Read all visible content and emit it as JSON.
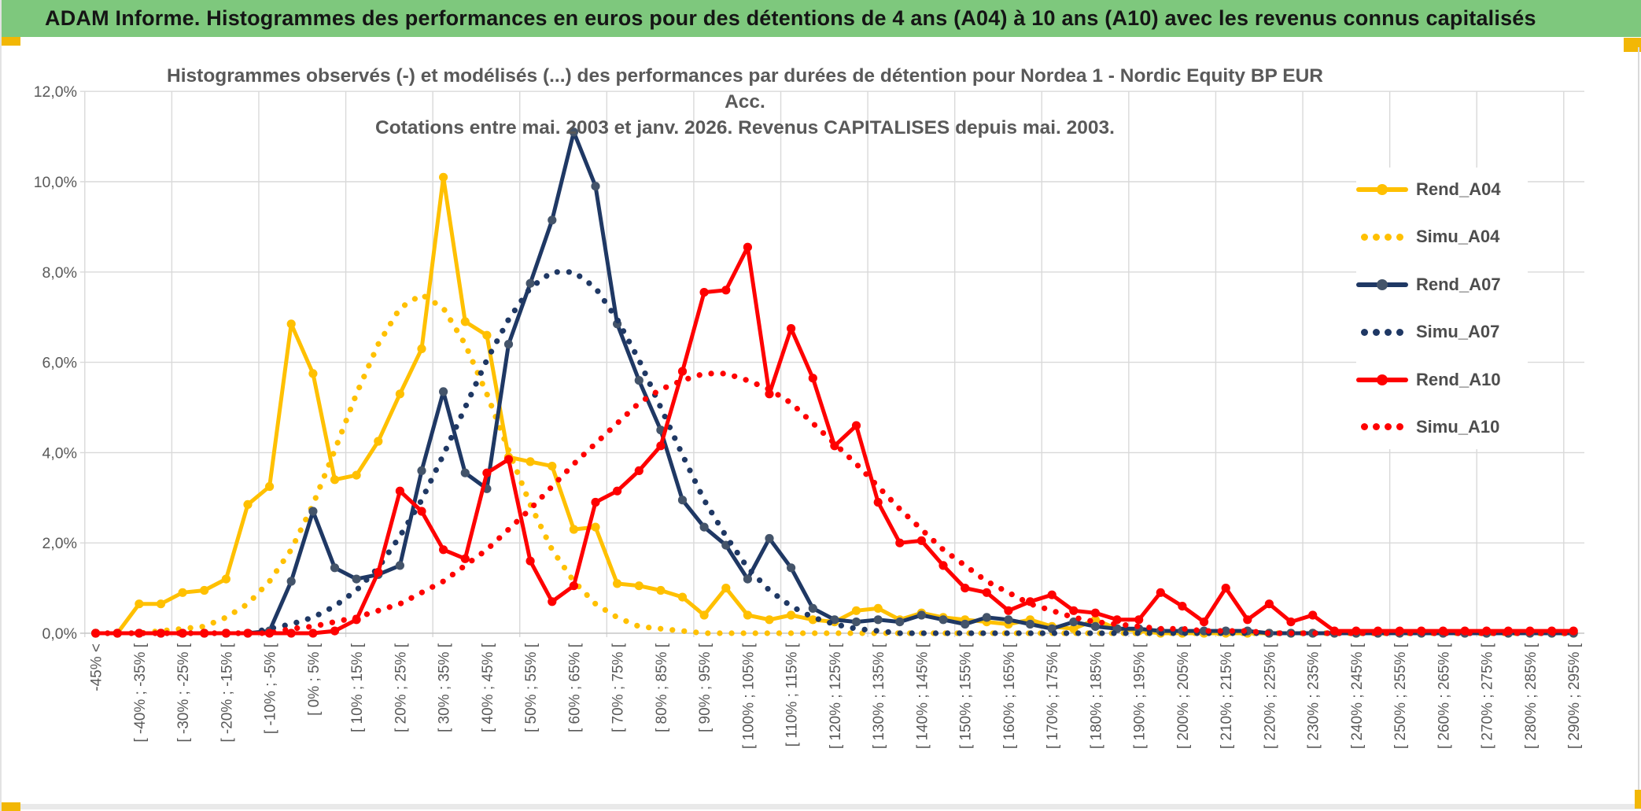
{
  "header": {
    "title": "ADAM Informe. Histogrammes des performances en euros pour des détentions de 4 ans (A04) à 10 ans (A10) avec les revenus connus capitalisés"
  },
  "colors": {
    "header_bg": "#7ec87d",
    "accent_gold": "#f2b705",
    "gridline": "#d9d9d9",
    "axis_text": "#595959",
    "title_text": "#595959",
    "gold_series": "#FFC000",
    "navy_series": "#1F3864",
    "navy_marker": "#44546A",
    "red_series": "#FE0000"
  },
  "chart_data": {
    "type": "line",
    "title_line1": "Histogrammes observés (-) et modélisés (...) des performances par durées de détention pour Nordea 1 - Nordic Equity BP EUR Acc.",
    "title_line2": "Cotations entre mai. 2003 et janv. 2026. Revenus CAPITALISES depuis mai. 2003.",
    "grid": true,
    "legend_position": "right",
    "y_axis": {
      "ylim": [
        0,
        12
      ],
      "tick_values": [
        0,
        2,
        4,
        6,
        8,
        10,
        12
      ],
      "tick_labels": [
        "0,0%",
        "2,0%",
        "4,0%",
        "6,0%",
        "8,0%",
        "10,0%",
        "12,0%"
      ]
    },
    "x_axis": {
      "bin_width_pct": 5,
      "labels": [
        "-45% <",
        "",
        "[ -40% ; -35% [",
        "",
        "[ -30% ; -25% [",
        "",
        "[ -20% ; -15% [",
        "",
        "[ -10% ; -5% [",
        "",
        "[ 0% ; 5% [",
        "",
        "[ 10% ; 15% [",
        "",
        "[ 20% ; 25% [",
        "",
        "[ 30% ; 35% [",
        "",
        "[ 40% ; 45% [",
        "",
        "[ 50% ; 55% [",
        "",
        "[ 60% ; 65% [",
        "",
        "[ 70% ; 75% [",
        "",
        "[ 80% ; 85% [",
        "",
        "[ 90% ; 95% [",
        "",
        "[ 100% ; 105% [",
        "",
        "[ 110% ; 115% [",
        "",
        "[ 120% ; 125% [",
        "",
        "[ 130% ; 135% [",
        "",
        "[ 140% ; 145% [",
        "",
        "[ 150% ; 155% [",
        "",
        "[ 160% ; 165% [",
        "",
        "[ 170% ; 175% [",
        "",
        "[ 180% ; 185% [",
        "",
        "[ 190% ; 195% [",
        "",
        "[ 200% ; 205% [",
        "",
        "[ 210% ; 215% [",
        "",
        "[ 220% ; 225% [",
        "",
        "[ 230% ; 235% [",
        "",
        "[ 240% ; 245% [",
        "",
        "[ 250% ; 255% [",
        "",
        "[ 260% ; 265% [",
        "",
        "[ 270% ; 275% [",
        "",
        "[ 280% ; 285% [",
        "",
        "[ 290% ; 295% ["
      ]
    },
    "series": [
      {
        "name": "Rend_A04",
        "style": "solid",
        "color": "#FFC000",
        "marker_color": "#FFC000",
        "values": [
          0,
          0,
          0.65,
          0.65,
          0.9,
          0.95,
          1.2,
          2.85,
          3.25,
          6.85,
          5.75,
          3.4,
          3.5,
          4.25,
          5.3,
          6.3,
          10.1,
          6.9,
          6.6,
          3.9,
          3.8,
          3.7,
          2.3,
          2.35,
          1.1,
          1.05,
          0.95,
          0.8,
          0.4,
          1.0,
          0.4,
          0.3,
          0.4,
          0.3,
          0.25,
          0.5,
          0.55,
          0.3,
          0.45,
          0.35,
          0.3,
          0.25,
          0.2,
          0.3,
          0.15,
          0.1,
          0.3,
          0.1,
          0.05,
          0,
          0,
          0,
          0,
          0,
          0,
          0,
          0,
          0,
          0,
          0,
          0,
          0,
          0,
          0,
          0,
          0,
          0,
          0,
          0
        ]
      },
      {
        "name": "Simu_A04",
        "style": "dotted",
        "color": "#FFC000",
        "marker_color": "#FFC000",
        "values": [
          0,
          0,
          0,
          0.05,
          0.1,
          0.15,
          0.35,
          0.65,
          1.15,
          1.85,
          2.85,
          4.05,
          5.3,
          6.4,
          7.2,
          7.5,
          7.2,
          6.4,
          5.3,
          4.05,
          2.85,
          1.85,
          1.15,
          0.65,
          0.35,
          0.15,
          0.1,
          0.05,
          0,
          0,
          0,
          0,
          0,
          0,
          0,
          0,
          0,
          0,
          0,
          0,
          0,
          0,
          0,
          0,
          0,
          0,
          0,
          0,
          0,
          0,
          0,
          0,
          0,
          0,
          0,
          0,
          0,
          0,
          0,
          0,
          0,
          0,
          0,
          0,
          0,
          0,
          0,
          0,
          0
        ]
      },
      {
        "name": "Rend_A07",
        "style": "solid",
        "color": "#1F3864",
        "marker_color": "#44546A",
        "values": [
          0,
          0,
          0,
          0,
          0,
          0,
          0,
          0,
          0.05,
          1.15,
          2.7,
          1.45,
          1.2,
          1.3,
          1.5,
          3.6,
          5.35,
          3.55,
          3.2,
          6.4,
          7.75,
          9.15,
          11.1,
          9.9,
          6.85,
          5.6,
          4.5,
          2.95,
          2.35,
          1.95,
          1.2,
          2.1,
          1.45,
          0.55,
          0.3,
          0.25,
          0.3,
          0.25,
          0.4,
          0.3,
          0.2,
          0.35,
          0.3,
          0.2,
          0.1,
          0.25,
          0.15,
          0.1,
          0.1,
          0.05,
          0.05,
          0.05,
          0.05,
          0.05,
          0,
          0,
          0,
          0,
          0,
          0,
          0,
          0,
          0,
          0,
          0,
          0,
          0,
          0,
          0
        ]
      },
      {
        "name": "Simu_A07",
        "style": "dotted",
        "color": "#1F3864",
        "marker_color": "#1F3864",
        "values": [
          0,
          0,
          0,
          0,
          0,
          0,
          0,
          0,
          0.1,
          0.2,
          0.35,
          0.6,
          0.95,
          1.45,
          2.15,
          2.95,
          3.95,
          5.0,
          6.05,
          6.95,
          7.65,
          8.0,
          8.0,
          7.65,
          6.95,
          6.05,
          5.0,
          3.95,
          2.95,
          2.15,
          1.45,
          0.95,
          0.6,
          0.35,
          0.2,
          0.1,
          0.05,
          0,
          0,
          0,
          0,
          0,
          0,
          0,
          0,
          0,
          0,
          0,
          0,
          0,
          0,
          0,
          0,
          0,
          0,
          0,
          0,
          0,
          0,
          0,
          0,
          0,
          0,
          0,
          0,
          0,
          0,
          0,
          0
        ]
      },
      {
        "name": "Rend_A10",
        "style": "solid",
        "color": "#FE0000",
        "marker_color": "#FE0000",
        "values": [
          0,
          0,
          0,
          0,
          0,
          0,
          0,
          0,
          0,
          0,
          0,
          0.05,
          0.3,
          1.35,
          3.15,
          2.7,
          1.85,
          1.65,
          3.55,
          3.85,
          1.6,
          0.7,
          1.05,
          2.9,
          3.15,
          3.6,
          4.15,
          5.8,
          7.55,
          7.6,
          8.55,
          5.3,
          6.75,
          5.65,
          4.15,
          4.6,
          2.9,
          2.0,
          2.05,
          1.5,
          1.0,
          0.9,
          0.5,
          0.7,
          0.85,
          0.5,
          0.45,
          0.3,
          0.3,
          0.9,
          0.6,
          0.25,
          1.0,
          0.3,
          0.65,
          0.25,
          0.4,
          0.05,
          0.05,
          0.05,
          0.05,
          0.05,
          0.05,
          0.05,
          0.05,
          0.05,
          0.05,
          0.05,
          0.05
        ]
      },
      {
        "name": "Simu_A10",
        "style": "dotted",
        "color": "#FE0000",
        "marker_color": "#FE0000",
        "values": [
          0,
          0,
          0,
          0,
          0,
          0,
          0,
          0,
          0,
          0.1,
          0.15,
          0.25,
          0.35,
          0.5,
          0.65,
          0.9,
          1.15,
          1.5,
          1.85,
          2.3,
          2.75,
          3.25,
          3.75,
          4.2,
          4.65,
          5.1,
          5.4,
          5.6,
          5.75,
          5.75,
          5.6,
          5.4,
          5.1,
          4.65,
          4.2,
          3.75,
          3.25,
          2.75,
          2.3,
          1.85,
          1.5,
          1.15,
          0.9,
          0.65,
          0.5,
          0.35,
          0.25,
          0.2,
          0.15,
          0.1,
          0.1,
          0.05,
          0.05,
          0.05,
          0,
          0,
          0,
          0,
          0,
          0,
          0,
          0,
          0,
          0,
          0,
          0,
          0,
          0,
          0
        ]
      }
    ]
  },
  "legend": {
    "items": [
      {
        "label": "Rend_A04",
        "style": "solid",
        "color": "#FFC000",
        "marker_color": "#FFC000"
      },
      {
        "label": "Simu_A04",
        "style": "dotted",
        "color": "#FFC000",
        "marker_color": "#FFC000"
      },
      {
        "label": "Rend_A07",
        "style": "solid",
        "color": "#1F3864",
        "marker_color": "#44546A"
      },
      {
        "label": "Simu_A07",
        "style": "dotted",
        "color": "#1F3864",
        "marker_color": "#1F3864"
      },
      {
        "label": "Rend_A10",
        "style": "solid",
        "color": "#FE0000",
        "marker_color": "#FE0000"
      },
      {
        "label": "Simu_A10",
        "style": "dotted",
        "color": "#FE0000",
        "marker_color": "#FE0000"
      }
    ]
  }
}
